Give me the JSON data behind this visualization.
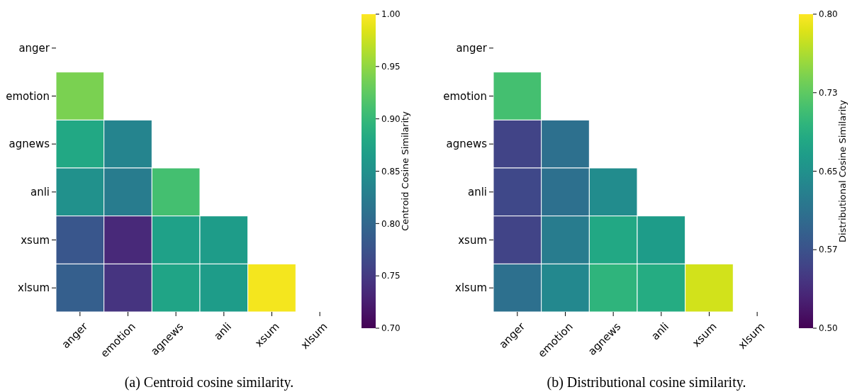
{
  "chart_data": [
    {
      "type": "heatmap",
      "annotations": [
        "(a) Centroid cosine similarity."
      ],
      "clabel": "Centroid Cosine Similarity",
      "categories": [
        "anger",
        "emotion",
        "agnews",
        "anli",
        "xsum",
        "xlsum"
      ],
      "y_categories": [
        "anger",
        "emotion",
        "agnews",
        "anli",
        "xsum",
        "xlsum"
      ],
      "cells": [
        [
          null,
          null,
          null,
          null,
          null,
          null
        ],
        [
          0.94,
          null,
          null,
          null,
          null,
          null
        ],
        [
          0.88,
          0.835,
          null,
          null,
          null,
          null
        ],
        [
          0.85,
          0.825,
          0.91,
          null,
          null,
          null
        ],
        [
          0.78,
          0.735,
          0.87,
          0.865,
          null,
          null
        ],
        [
          0.79,
          0.745,
          0.875,
          0.865,
          0.995,
          null
        ]
      ],
      "clim": [
        0.7,
        1.0
      ],
      "cticks": [
        {
          "value": 0.7,
          "label": "0.70"
        },
        0.75,
        {
          "value": 0.8,
          "label": "0.80"
        },
        0.85,
        {
          "value": 0.9,
          "label": "0.90"
        },
        0.95,
        {
          "value": 1.0,
          "label": "1.00"
        }
      ]
    },
    {
      "type": "heatmap",
      "annotations": [
        "(b) Distributional cosine similarity."
      ],
      "clabel": "Distributional Cosine Similarity",
      "categories": [
        "anger",
        "emotion",
        "agnews",
        "anli",
        "xsum",
        "xlsum"
      ],
      "y_categories": [
        "anger",
        "emotion",
        "agnews",
        "anli",
        "xsum",
        "xlsum"
      ],
      "cells": [
        [
          null,
          null,
          null,
          null,
          null,
          null
        ],
        [
          0.71,
          null,
          null,
          null,
          null,
          null
        ],
        [
          0.56,
          0.61,
          null,
          null,
          null,
          null
        ],
        [
          0.565,
          0.61,
          0.645,
          null,
          null,
          null
        ],
        [
          0.56,
          0.625,
          0.68,
          0.665,
          null,
          null
        ],
        [
          0.61,
          0.64,
          0.695,
          0.685,
          0.78,
          null
        ]
      ],
      "clim": [
        0.5,
        0.8
      ],
      "cticks": [
        {
          "value": 0.5,
          "label": "0.50"
        },
        {
          "value": 0.575,
          "label": "0.57"
        },
        0.65,
        {
          "value": 0.725,
          "label": "0.73"
        },
        {
          "value": 0.8,
          "label": "0.80"
        }
      ]
    }
  ]
}
